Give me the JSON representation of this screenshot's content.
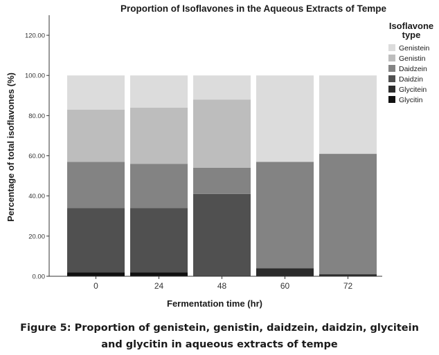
{
  "chart_data": {
    "type": "bar",
    "stacked": true,
    "title": "Proportion of Isoflavones in the Aqueous Extracts of Tempe",
    "xlabel": "Fermentation time (hr)",
    "ylabel": "Percentage of total isoflavones (%)",
    "ylim": [
      0,
      130
    ],
    "yticks": [
      "0.00",
      "20.00",
      "40.00",
      "60.00",
      "80.00",
      "100.00",
      "120.00"
    ],
    "categories": [
      "0",
      "24",
      "48",
      "60",
      "72"
    ],
    "legend": {
      "title": "Isoflavone type",
      "position": "right"
    },
    "series": [
      {
        "name": "Glycitin",
        "color": "#111111",
        "values": [
          2,
          2,
          0,
          0,
          0
        ]
      },
      {
        "name": "Glycitein",
        "color": "#2c2c2c",
        "values": [
          0,
          0,
          0,
          4,
          1
        ]
      },
      {
        "name": "Daidzin",
        "color": "#505050",
        "values": [
          32,
          32,
          41,
          0,
          0
        ]
      },
      {
        "name": "Daidzein",
        "color": "#838383",
        "values": [
          23,
          22,
          13,
          53,
          60
        ]
      },
      {
        "name": "Genistin",
        "color": "#bdbdbd",
        "values": [
          26,
          28,
          34,
          0,
          0
        ]
      },
      {
        "name": "Genistein",
        "color": "#dcdcdc",
        "values": [
          17,
          16,
          12,
          43,
          39
        ]
      }
    ],
    "legend_order": [
      "Genistein",
      "Genistin",
      "Daidzein",
      "Daidzin",
      "Glycitein",
      "Glycitin"
    ]
  },
  "caption": {
    "line1": "Figure 5: Proportion of genistein, genistin, daidzein, daidzin, glycitein",
    "line2": "and glycitin in aqueous extracts of tempe"
  }
}
